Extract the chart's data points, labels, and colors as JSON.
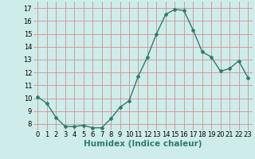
{
  "x": [
    0,
    1,
    2,
    3,
    4,
    5,
    6,
    7,
    8,
    9,
    10,
    11,
    12,
    13,
    14,
    15,
    16,
    17,
    18,
    19,
    20,
    21,
    22,
    23
  ],
  "y": [
    10.1,
    9.6,
    8.5,
    7.8,
    7.8,
    7.9,
    7.7,
    7.7,
    8.4,
    9.3,
    9.8,
    11.7,
    13.2,
    15.0,
    16.5,
    16.9,
    16.8,
    15.3,
    13.6,
    13.2,
    12.1,
    12.3,
    12.9,
    11.6
  ],
  "line_color": "#2d7d6e",
  "marker": "D",
  "marker_size": 2.0,
  "bg_color": "#ceecea",
  "grid_color": "#d09090",
  "xlabel": "Humidex (Indice chaleur)",
  "ylim": [
    7.5,
    17.5
  ],
  "xlim": [
    -0.5,
    23.5
  ],
  "yticks": [
    8,
    9,
    10,
    11,
    12,
    13,
    14,
    15,
    16,
    17
  ],
  "xticks": [
    0,
    1,
    2,
    3,
    4,
    5,
    6,
    7,
    8,
    9,
    10,
    11,
    12,
    13,
    14,
    15,
    16,
    17,
    18,
    19,
    20,
    21,
    22,
    23
  ],
  "tick_label_fontsize": 6,
  "xlabel_fontsize": 7.5,
  "line_width": 1.0
}
